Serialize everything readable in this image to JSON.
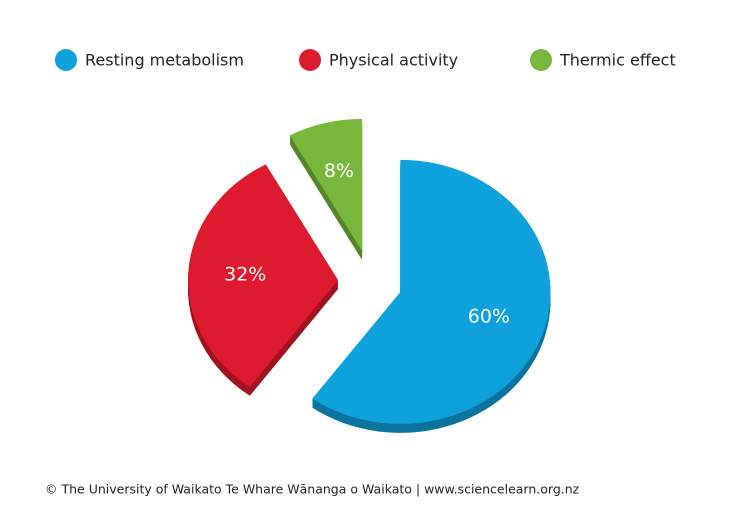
{
  "chart_data": {
    "type": "pie",
    "categories": [
      "Resting metabolism",
      "Physical activity",
      "Thermic effect"
    ],
    "values": [
      60,
      32,
      8
    ],
    "value_labels": [
      "60%",
      "32%",
      "8%"
    ],
    "colors": [
      "#0ea1dc",
      "#de1a2e",
      "#77b83c"
    ]
  },
  "footer": "© The University of Waikato Te Whare Wānanga o Waikato | www.sciencelearn.org.nz"
}
